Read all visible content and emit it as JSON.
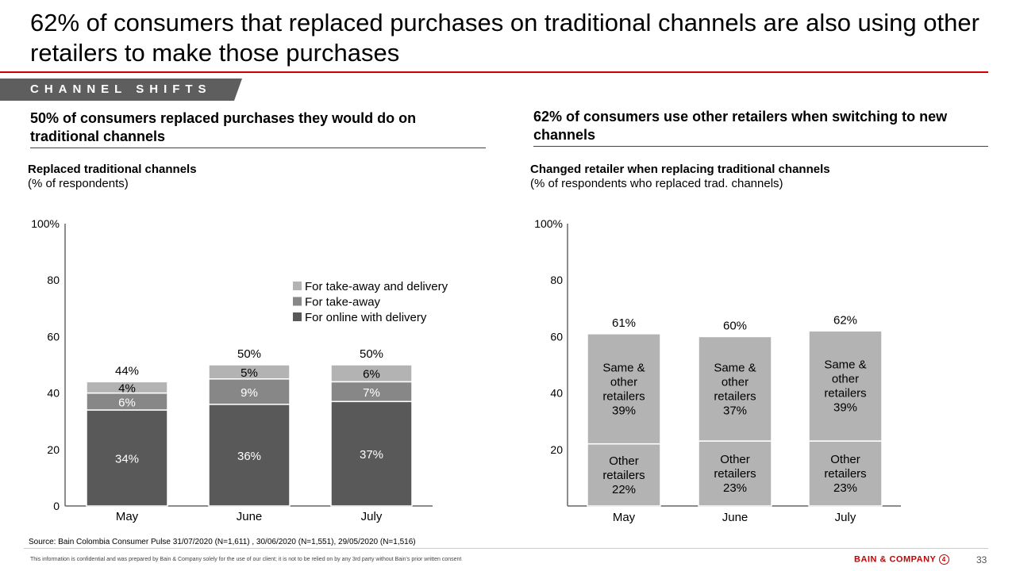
{
  "title": "62% of consumers that replaced purchases on traditional channels are also using other retailers to make those purchases",
  "banner": "CHANNEL SHIFTS",
  "left": {
    "heading": "50% of consumers replaced purchases they would do on traditional channels"
  },
  "right": {
    "heading": "62% of consumers use other retailers when switching to new channels"
  },
  "footer": {
    "source": "Source: Bain Colombia Consumer Pulse 31/07/2020 (N=1,611) , 30/06/2020 (N=1,551), 29/05/2020 (N=1,516)",
    "confidential": "This information is confidential and was prepared by Bain & Company solely for the use of our client; it is not to be relied on by any 3rd party without Bain's prior written consent",
    "logo": "BAIN & COMPANY",
    "page": "33"
  },
  "colors": {
    "accent": "#cc0000",
    "dark": "#595959",
    "mid": "#878787",
    "light": "#b3b3b3"
  },
  "chart_data": [
    {
      "type": "bar",
      "stacked": true,
      "title": "Replaced traditional channels",
      "subtitle": "(% of respondents)",
      "categories": [
        "May",
        "June",
        "July"
      ],
      "yticks": [
        "0",
        "20",
        "40",
        "60",
        "80",
        "100%"
      ],
      "ylim": [
        0,
        100
      ],
      "legend_position": "top-right",
      "series": [
        {
          "name": "For online with delivery",
          "values": [
            34,
            36,
            37
          ],
          "labels": [
            "34%",
            "36%",
            "37%"
          ],
          "color": "#595959"
        },
        {
          "name": "For take-away",
          "values": [
            6,
            9,
            7
          ],
          "labels": [
            "6%",
            "9%",
            "7%"
          ],
          "color": "#878787"
        },
        {
          "name": "For take-away and delivery",
          "values": [
            4,
            5,
            6
          ],
          "labels": [
            "4%",
            "5%",
            "6%"
          ],
          "color": "#b3b3b3"
        }
      ],
      "totals": [
        "44%",
        "50%",
        "50%"
      ]
    },
    {
      "type": "bar",
      "stacked": true,
      "title": "Changed retailer  when replacing traditional channels",
      "subtitle": "(% of respondents who replaced trad. channels)",
      "categories": [
        "May",
        "June",
        "July"
      ],
      "yticks": [
        "20",
        "40",
        "60",
        "80",
        "100%"
      ],
      "ylim": [
        0,
        100
      ],
      "series": [
        {
          "name": "Other retailers",
          "values": [
            22,
            23,
            23
          ],
          "labels": [
            "Other retailers 22%",
            "Other retailers 23%",
            "Other retailers 23%"
          ],
          "color": "#b3b3b3"
        },
        {
          "name": "Same & other retailers",
          "values": [
            39,
            37,
            39
          ],
          "labels": [
            "Same & other retailers 39%",
            "Same & other retailers 37%",
            "Same & other retailers 39%"
          ],
          "color": "#b3b3b3"
        }
      ],
      "totals": [
        "61%",
        "60%",
        "62%"
      ]
    }
  ]
}
